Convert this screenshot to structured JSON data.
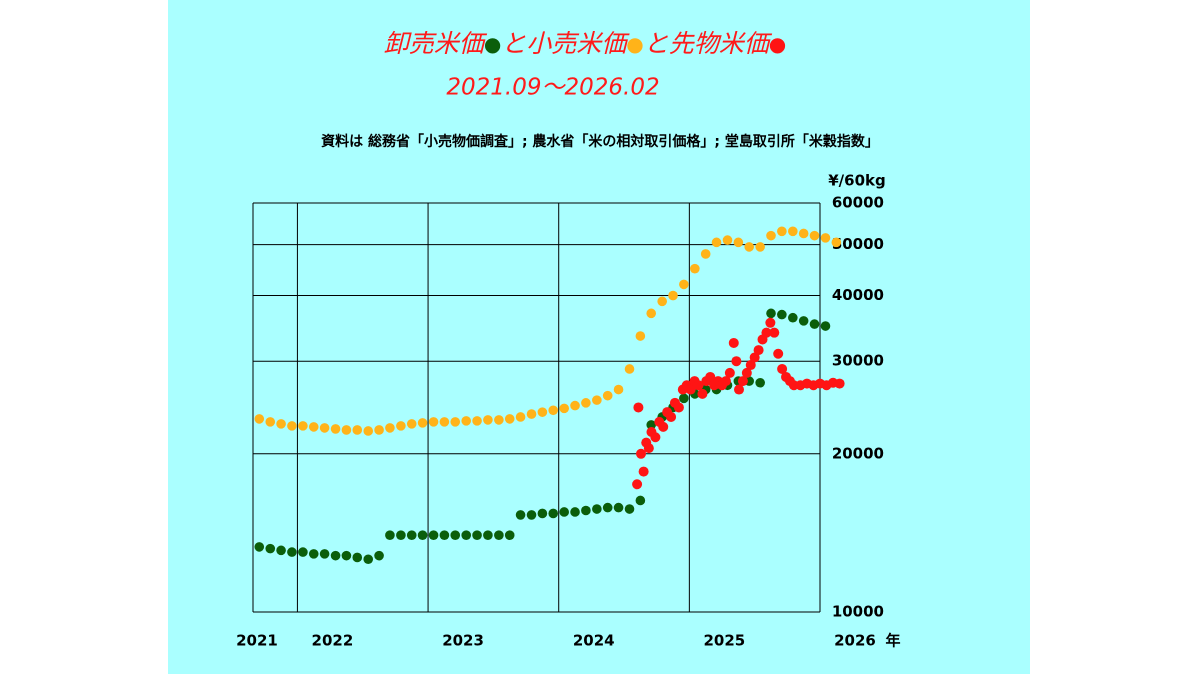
{
  "chart_data": {
    "type": "scatter",
    "title": "卸売米価●と小売米価●と先物米価●",
    "subtitle": "2021.09～2026.02",
    "source_note": "資料は 総務省「小売物価調査」; 農水省「米の相対取引価格」; 堂島取引所「米穀指数」",
    "y_axis_label": "¥/60kg",
    "x_axis_label": "年",
    "log_scale": true,
    "grid": true,
    "xlim": [
      2021.66,
      2026.0
    ],
    "ylim": [
      10000,
      60000
    ],
    "yticks": [
      10000,
      20000,
      30000,
      40000,
      50000,
      60000
    ],
    "xticks": [
      2021,
      2022,
      2023,
      2024,
      2025,
      2026
    ],
    "series": [
      {
        "color": "#0b5e0b",
        "x": [
          2021.708,
          2021.792,
          2021.875,
          2021.958,
          2022.042,
          2022.125,
          2022.208,
          2022.292,
          2022.375,
          2022.458,
          2022.542,
          2022.625,
          2022.708,
          2022.792,
          2022.875,
          2022.958,
          2023.042,
          2023.125,
          2023.208,
          2023.292,
          2023.375,
          2023.458,
          2023.542,
          2023.625,
          2023.708,
          2023.792,
          2023.875,
          2023.958,
          2024.042,
          2024.125,
          2024.208,
          2024.292,
          2024.375,
          2024.458,
          2024.542,
          2024.625,
          2024.708,
          2024.792,
          2024.875,
          2024.958,
          2025.042,
          2025.125,
          2025.208,
          2025.292,
          2025.375,
          2025.458,
          2025.542,
          2025.625,
          2025.708,
          2025.792,
          2025.875,
          2025.958,
          2026.042
        ],
        "values": [
          13300,
          13200,
          13100,
          13000,
          13000,
          12900,
          12900,
          12800,
          12800,
          12700,
          12600,
          12800,
          14000,
          14000,
          14000,
          14000,
          14000,
          14000,
          14000,
          14000,
          14000,
          14000,
          14000,
          14000,
          15300,
          15300,
          15400,
          15400,
          15500,
          15500,
          15600,
          15700,
          15800,
          15800,
          15700,
          16300,
          22700,
          23500,
          24500,
          25500,
          26000,
          26500,
          26500,
          27000,
          27500,
          27500,
          27300,
          37000,
          36800,
          36300,
          35800,
          35300,
          35000
        ]
      },
      {
        "color": "#ffb319",
        "x": [
          2021.708,
          2021.792,
          2021.875,
          2021.958,
          2022.042,
          2022.125,
          2022.208,
          2022.292,
          2022.375,
          2022.458,
          2022.542,
          2022.625,
          2022.708,
          2022.792,
          2022.875,
          2022.958,
          2023.042,
          2023.125,
          2023.208,
          2023.292,
          2023.375,
          2023.458,
          2023.542,
          2023.625,
          2023.708,
          2023.792,
          2023.875,
          2023.958,
          2024.042,
          2024.125,
          2024.208,
          2024.292,
          2024.375,
          2024.458,
          2024.542,
          2024.625,
          2024.708,
          2024.792,
          2024.875,
          2024.958,
          2025.042,
          2025.125,
          2025.208,
          2025.292,
          2025.375,
          2025.458,
          2025.542,
          2025.625,
          2025.708,
          2025.792,
          2025.875,
          2025.958,
          2026.042,
          2026.125
        ],
        "values": [
          23300,
          23000,
          22800,
          22600,
          22600,
          22500,
          22400,
          22300,
          22200,
          22200,
          22100,
          22200,
          22400,
          22600,
          22800,
          22900,
          23000,
          23000,
          23000,
          23100,
          23100,
          23200,
          23200,
          23300,
          23500,
          23800,
          24000,
          24200,
          24400,
          24700,
          25000,
          25300,
          25800,
          26500,
          29000,
          33500,
          37000,
          39000,
          40000,
          42000,
          45000,
          48000,
          50500,
          51000,
          50500,
          49500,
          49500,
          52000,
          53000,
          53000,
          52500,
          52000,
          51500,
          50500
        ]
      },
      {
        "color": "#ff1414",
        "x": [
          2024.6,
          2024.61,
          2024.63,
          2024.65,
          2024.67,
          2024.69,
          2024.71,
          2024.74,
          2024.77,
          2024.8,
          2024.83,
          2024.86,
          2024.89,
          2024.92,
          2024.95,
          2024.98,
          2025.01,
          2025.04,
          2025.07,
          2025.1,
          2025.13,
          2025.16,
          2025.19,
          2025.22,
          2025.25,
          2025.28,
          2025.31,
          2025.34,
          2025.36,
          2025.38,
          2025.41,
          2025.44,
          2025.47,
          2025.5,
          2025.53,
          2025.56,
          2025.59,
          2025.62,
          2025.65,
          2025.68,
          2025.71,
          2025.74,
          2025.77,
          2025.8,
          2025.85,
          2025.9,
          2025.95,
          2026.0,
          2026.05,
          2026.1,
          2026.15
        ],
        "values": [
          17500,
          24500,
          20000,
          18500,
          21000,
          20500,
          22000,
          21500,
          23000,
          22500,
          24000,
          23500,
          25000,
          24500,
          26500,
          27000,
          26500,
          27500,
          27000,
          26000,
          27500,
          28000,
          27000,
          27500,
          27000,
          27500,
          28500,
          32500,
          30000,
          26500,
          27500,
          28500,
          29500,
          30500,
          31500,
          33000,
          34000,
          35500,
          34000,
          31000,
          29000,
          28000,
          27500,
          27000,
          27000,
          27200,
          27000,
          27200,
          27000,
          27300,
          27200
        ]
      }
    ]
  }
}
